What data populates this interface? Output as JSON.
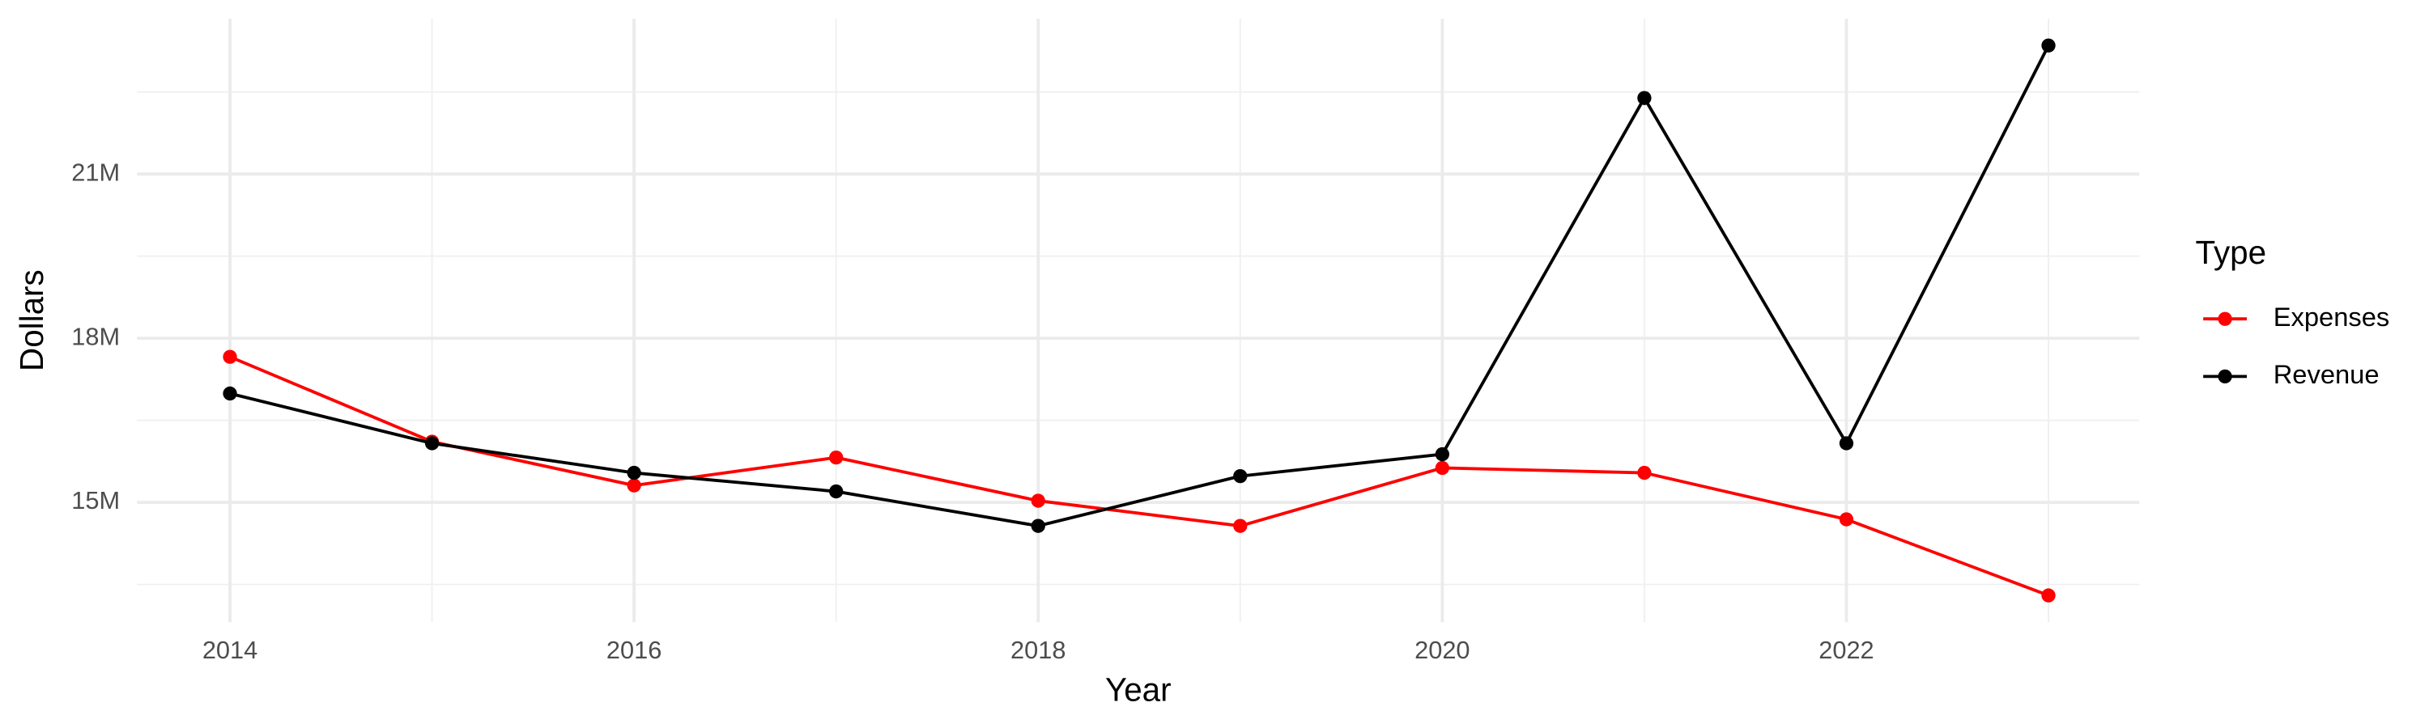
{
  "chart_data": {
    "type": "line",
    "x_label": "Year",
    "y_label": "Dollars",
    "x": [
      2014,
      2015,
      2016,
      2017,
      2018,
      2019,
      2020,
      2021,
      2022,
      2023
    ],
    "series": [
      {
        "name": "Expenses",
        "color": "#ff0000",
        "values": [
          17660000,
          16110000,
          15310000,
          15820000,
          15030000,
          14570000,
          15630000,
          15540000,
          14690000,
          13300000
        ]
      },
      {
        "name": "Revenue",
        "color": "#000000",
        "values": [
          16990000,
          16080000,
          15540000,
          15200000,
          14570000,
          15480000,
          15880000,
          22390000,
          16080000,
          23350000
        ]
      }
    ],
    "xlim": [
      2013.54,
      2023.45
    ],
    "xticks": [
      2014,
      2016,
      2018,
      2020,
      2022
    ],
    "ylim": [
      12810000,
      23840000
    ],
    "yticks": [
      {
        "value": 15000000,
        "label": "15M"
      },
      {
        "value": 18000000,
        "label": "18M"
      },
      {
        "value": 21000000,
        "label": "21M"
      }
    ],
    "grid": true,
    "legend_title": "Type",
    "legend_position": "right"
  }
}
